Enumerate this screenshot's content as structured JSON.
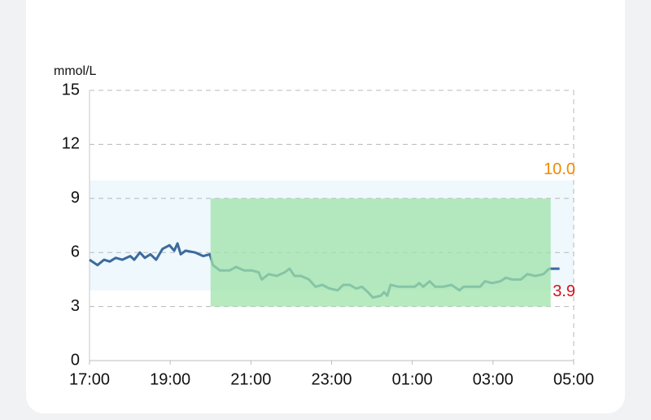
{
  "chart_data": {
    "type": "line",
    "y_label": "mmol/L",
    "x": [
      17.0,
      17.2,
      17.36,
      17.5,
      17.65,
      17.81,
      18.01,
      18.11,
      18.25,
      18.37,
      18.51,
      18.65,
      18.81,
      18.98,
      19.1,
      19.18,
      19.26,
      19.38,
      19.62,
      19.82,
      19.98,
      20.06,
      20.23,
      20.47,
      20.63,
      20.83,
      21.03,
      21.19,
      21.27,
      21.44,
      21.64,
      21.84,
      21.96,
      22.08,
      22.24,
      22.44,
      22.6,
      22.77,
      22.95,
      23.15,
      23.29,
      23.45,
      23.61,
      23.75,
      23.9,
      24.02,
      24.22,
      24.3,
      24.38,
      24.46,
      24.66,
      25.06,
      25.17,
      25.27,
      25.43,
      25.57,
      25.77,
      25.97,
      26.17,
      26.27,
      26.68,
      26.8,
      26.98,
      27.18,
      27.32,
      27.48,
      27.69,
      27.85,
      28.05,
      28.25,
      28.39,
      28.65
    ],
    "values": [
      5.6,
      5.3,
      5.6,
      5.5,
      5.7,
      5.6,
      5.8,
      5.6,
      6.0,
      5.7,
      5.9,
      5.6,
      6.2,
      6.4,
      6.1,
      6.5,
      5.9,
      6.1,
      6.0,
      5.8,
      5.9,
      5.3,
      5.0,
      5.0,
      5.2,
      5.0,
      5.0,
      4.9,
      4.5,
      4.8,
      4.7,
      4.9,
      5.1,
      4.7,
      4.7,
      4.5,
      4.1,
      4.2,
      4.0,
      3.9,
      4.2,
      4.2,
      4.0,
      4.1,
      3.8,
      3.5,
      3.6,
      3.8,
      3.6,
      4.2,
      4.1,
      4.1,
      4.3,
      4.1,
      4.4,
      4.1,
      4.1,
      4.2,
      3.9,
      4.1,
      4.1,
      4.4,
      4.3,
      4.4,
      4.6,
      4.5,
      4.5,
      4.8,
      4.7,
      4.8,
      5.1,
      5.1
    ],
    "color": "#3d6a9e",
    "xlim": [
      17,
      29
    ],
    "xticks": [
      {
        "value": 17,
        "label": "17:00"
      },
      {
        "value": 19,
        "label": "19:00"
      },
      {
        "value": 21,
        "label": "21:00"
      },
      {
        "value": 23,
        "label": "23:00"
      },
      {
        "value": 25,
        "label": "01:00"
      },
      {
        "value": 27,
        "label": "03:00"
      },
      {
        "value": 29,
        "label": "05:00"
      }
    ],
    "ylim": [
      0,
      15
    ],
    "yticks": [
      0,
      3,
      6,
      9,
      12,
      15
    ],
    "grid": true,
    "target_range": {
      "low": 3.9,
      "high": {
        "value": 10,
        "label": "10.0"
      },
      "color": "#eef8fd",
      "low_color": "#d0141c",
      "high_color": "#f08a00"
    },
    "highlight": {
      "x0": 20,
      "x1": 28.43,
      "y0": 3,
      "y1": 9,
      "color": "#9fe3a8"
    }
  }
}
